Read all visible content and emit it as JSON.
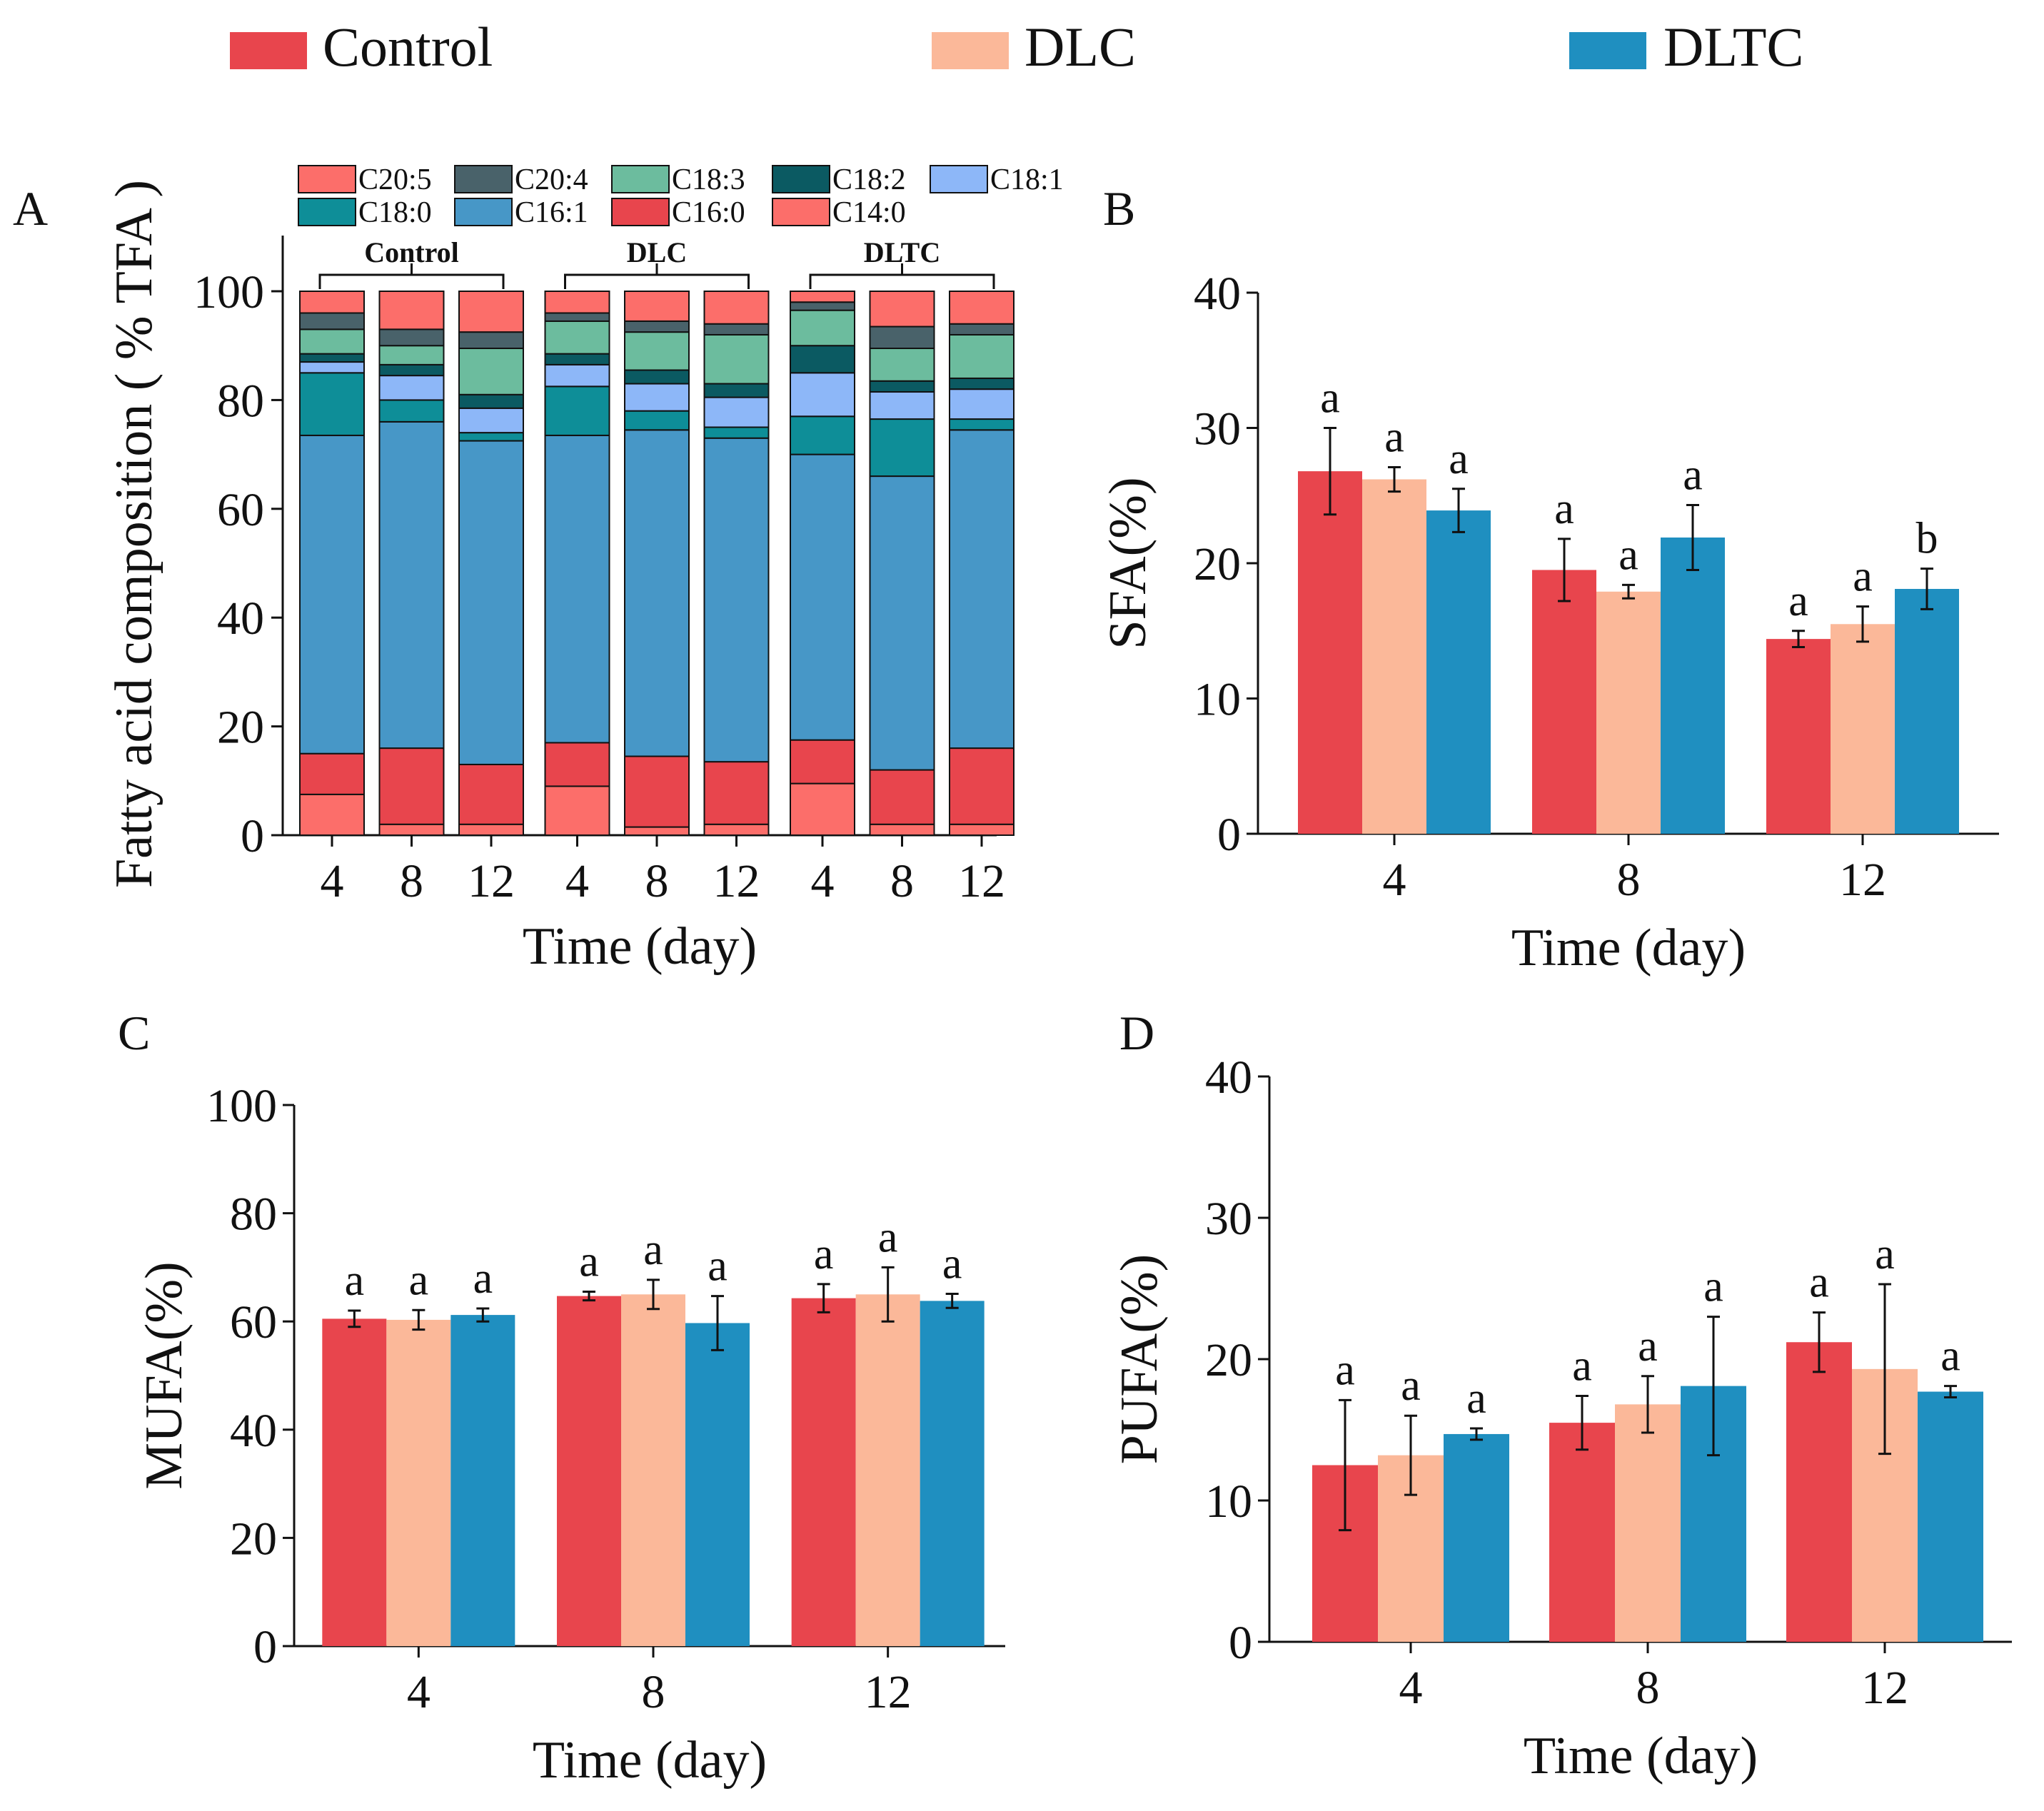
{
  "colors": {
    "Control": "#e8454d",
    "DLC": "#fbb899",
    "DLTC": "#1f8fc0"
  },
  "fa_colors": {
    "C20:5": "#fc6e6a",
    "C20:4": "#49626a",
    "C18:3": "#6cbc9e",
    "C18:2": "#0b5a62",
    "C18:1": "#8db7f8",
    "C18:0": "#0e8e98",
    "C16:1": "#4797c7",
    "C16:0": "#e8454d",
    "C14:0": "#fc6e6a"
  },
  "legend": {
    "items": [
      "Control",
      "DLC",
      "DLTC"
    ]
  },
  "chart_data": [
    {
      "panel": "A",
      "type": "bar",
      "stacked": true,
      "title": "",
      "xlabel": "Time (day)",
      "ylabel": "Fatty acid composition ( % TFA )",
      "ylim": [
        0,
        100
      ],
      "yticks": [
        0,
        20,
        40,
        60,
        80,
        100
      ],
      "legend_items": [
        "C20:5",
        "C20:4",
        "C18:3",
        "C18:2",
        "C18:1",
        "C18:0",
        "C16:1",
        "C16:0",
        "C14:0"
      ],
      "groups": [
        "Control",
        "DLC",
        "DLTC"
      ],
      "categories": [
        "4",
        "8",
        "12",
        "4",
        "8",
        "12",
        "4",
        "8",
        "12"
      ],
      "stack_order": [
        "C14:0",
        "C16:0",
        "C16:1",
        "C18:0",
        "C18:1",
        "C18:2",
        "C18:3",
        "C20:4",
        "C20:5"
      ],
      "series": [
        {
          "name": "C14:0",
          "values": [
            7.5,
            2,
            2,
            9,
            1.5,
            2,
            9.5,
            2,
            2
          ]
        },
        {
          "name": "C16:0",
          "values": [
            7.5,
            14,
            11,
            8,
            13,
            11.5,
            8,
            10,
            14
          ]
        },
        {
          "name": "C16:1",
          "values": [
            58.5,
            60,
            59.5,
            56.5,
            60,
            59.5,
            52.5,
            54,
            58.5
          ]
        },
        {
          "name": "C18:0",
          "values": [
            11.5,
            4,
            1.5,
            9,
            3.5,
            2,
            7,
            10.5,
            2
          ]
        },
        {
          "name": "C18:1",
          "values": [
            2,
            4.5,
            4.5,
            4,
            5,
            5.5,
            8,
            5,
            5.5
          ]
        },
        {
          "name": "C18:2",
          "values": [
            1.5,
            2,
            2.5,
            2,
            2.5,
            2.5,
            5,
            2,
            2
          ]
        },
        {
          "name": "C18:3",
          "values": [
            4.5,
            3.5,
            8.5,
            6,
            7,
            9,
            6.5,
            6,
            8
          ]
        },
        {
          "name": "C20:4",
          "values": [
            3,
            3,
            3,
            1.5,
            2,
            2,
            1.5,
            4,
            2
          ]
        },
        {
          "name": "C20:5",
          "values": [
            4,
            7,
            7.5,
            4,
            5.5,
            6,
            2,
            6.5,
            6
          ]
        }
      ]
    },
    {
      "panel": "B",
      "type": "bar",
      "title": "",
      "xlabel": "Time (day)",
      "ylabel": "SFA(%)",
      "ylim": [
        0,
        40
      ],
      "yticks": [
        0,
        10,
        20,
        30,
        40
      ],
      "categories": [
        "4",
        "8",
        "12"
      ],
      "series": [
        {
          "name": "Control",
          "values": [
            26.8,
            19.5,
            14.4
          ],
          "errors": [
            3.2,
            2.3,
            0.6
          ],
          "letters": [
            "a",
            "a",
            "a"
          ]
        },
        {
          "name": "DLC",
          "values": [
            26.2,
            17.9,
            15.5
          ],
          "errors": [
            0.9,
            0.5,
            1.3
          ],
          "letters": [
            "a",
            "a",
            "a"
          ]
        },
        {
          "name": "DLTC",
          "values": [
            23.9,
            21.9,
            18.1
          ],
          "errors": [
            1.6,
            2.4,
            1.5
          ],
          "letters": [
            "a",
            "a",
            "b"
          ]
        }
      ]
    },
    {
      "panel": "C",
      "type": "bar",
      "title": "",
      "xlabel": "Time (day)",
      "ylabel": "MUFA(%)",
      "ylim": [
        0,
        100
      ],
      "yticks": [
        0,
        20,
        40,
        60,
        80,
        100
      ],
      "categories": [
        "4",
        "8",
        "12"
      ],
      "series": [
        {
          "name": "Control",
          "values": [
            60.5,
            64.7,
            64.3
          ],
          "errors": [
            1.5,
            0.8,
            2.6
          ],
          "letters": [
            "a",
            "a",
            "a"
          ]
        },
        {
          "name": "DLC",
          "values": [
            60.3,
            65.0,
            65.0
          ],
          "errors": [
            1.8,
            2.7,
            5.0
          ],
          "letters": [
            "a",
            "a",
            "a"
          ]
        },
        {
          "name": "DLTC",
          "values": [
            61.2,
            59.7,
            63.8
          ],
          "errors": [
            1.2,
            5.0,
            1.3
          ],
          "letters": [
            "a",
            "a",
            "a"
          ]
        }
      ]
    },
    {
      "panel": "D",
      "type": "bar",
      "title": "",
      "xlabel": "Time (day)",
      "ylabel": "PUFA(%)",
      "ylim": [
        0,
        40
      ],
      "yticks": [
        0,
        10,
        20,
        30,
        40
      ],
      "categories": [
        "4",
        "8",
        "12"
      ],
      "series": [
        {
          "name": "Control",
          "values": [
            12.5,
            15.5,
            21.2
          ],
          "errors": [
            4.6,
            1.9,
            2.1
          ],
          "letters": [
            "a",
            "a",
            "a"
          ]
        },
        {
          "name": "DLC",
          "values": [
            13.2,
            16.8,
            19.3
          ],
          "errors": [
            2.8,
            2.0,
            6.0
          ],
          "letters": [
            "a",
            "a",
            "a"
          ]
        },
        {
          "name": "DLTC",
          "values": [
            14.7,
            18.1,
            17.7
          ],
          "errors": [
            0.4,
            4.9,
            0.4
          ],
          "letters": [
            "a",
            "a",
            "a"
          ]
        }
      ]
    }
  ]
}
